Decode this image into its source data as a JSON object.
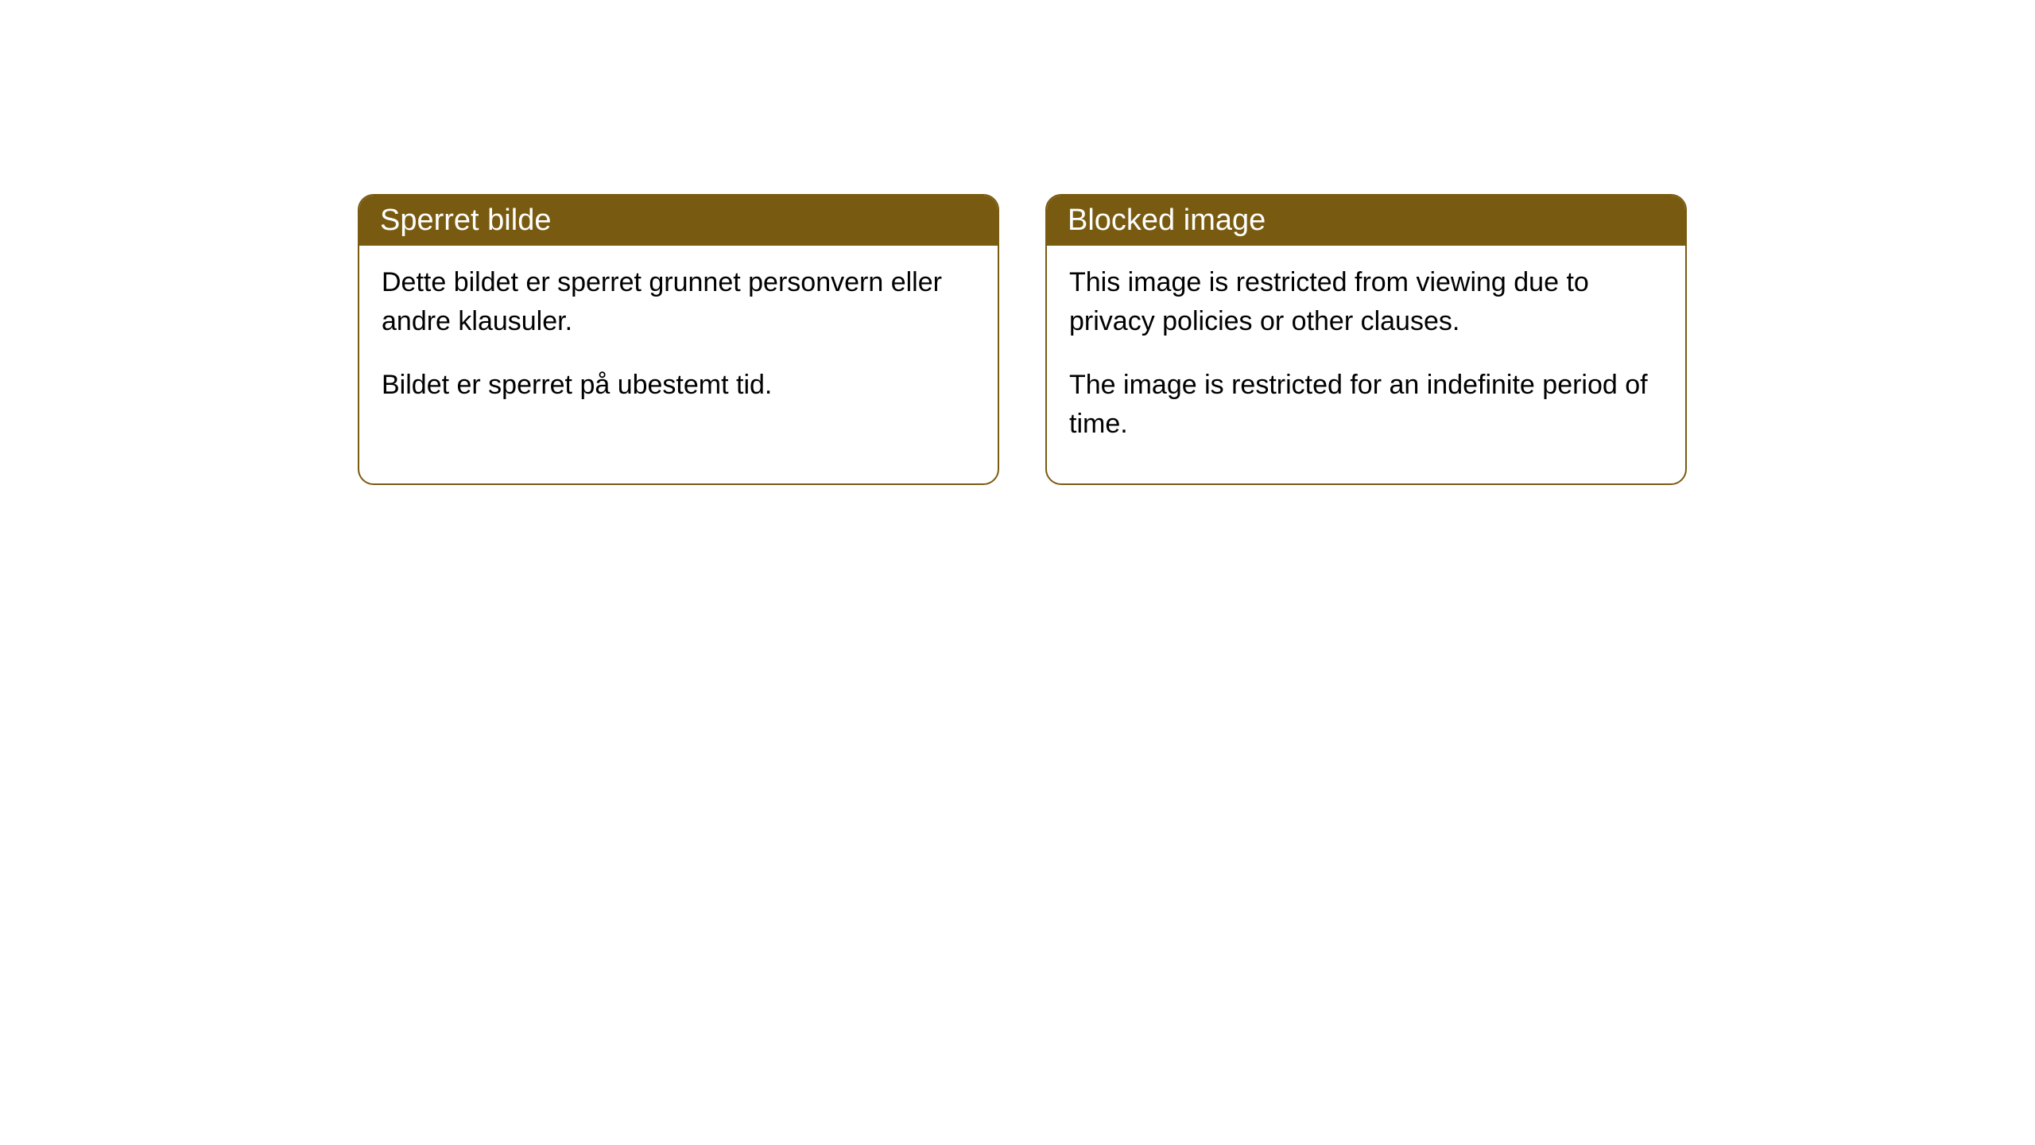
{
  "cards": [
    {
      "title": "Sperret bilde",
      "paragraph1": "Dette bildet er sperret grunnet personvern eller andre klausuler.",
      "paragraph2": "Bildet er sperret på ubestemt tid."
    },
    {
      "title": "Blocked image",
      "paragraph1": "This image is restricted from viewing due to privacy policies or other clauses.",
      "paragraph2": "The image is restricted for an indefinite period of time."
    }
  ],
  "style": {
    "header_bg_color": "#785b10",
    "header_text_color": "#ffffff",
    "border_color": "#785b10",
    "body_text_color": "#000000",
    "background_color": "#ffffff",
    "border_radius": 20,
    "header_font_size": 38,
    "body_font_size": 34
  }
}
